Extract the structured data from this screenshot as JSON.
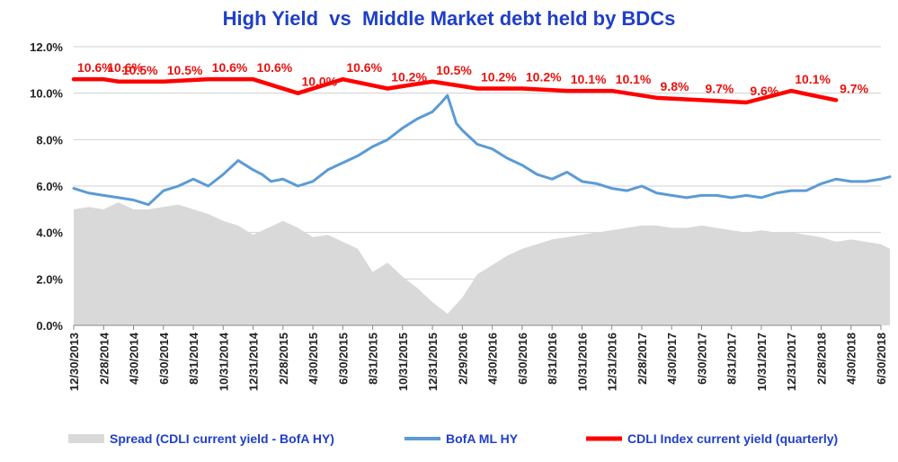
{
  "chart_data": {
    "type": "line",
    "title": "High Yield  vs  Middle Market debt held by BDCs",
    "ylim": [
      0,
      12
    ],
    "y_ticks": [
      "0.0%",
      "2.0%",
      "4.0%",
      "6.0%",
      "8.0%",
      "10.0%",
      "12.0%"
    ],
    "x_tick_labels": [
      "12/30/2013",
      "2/28/2014",
      "4/30/2014",
      "6/30/2014",
      "8/31/2014",
      "10/31/2014",
      "12/31/2014",
      "2/28/2015",
      "4/30/2015",
      "6/30/2015",
      "8/31/2015",
      "10/31/2015",
      "12/31/2015",
      "2/29/2016",
      "4/30/2016",
      "6/30/2016",
      "8/31/2016",
      "10/31/2016",
      "12/31/2016",
      "2/28/2017",
      "4/30/2017",
      "6/30/2017",
      "8/31/2017",
      "10/31/2017",
      "12/31/2017",
      "2/28/2018",
      "4/30/2018",
      "6/30/2018"
    ],
    "grid": "horizontal",
    "legend_position": "bottom",
    "series": [
      {
        "name": "Spread (CDLI current yield - BofA HY)",
        "type": "area",
        "color": "#d9d9d9",
        "x": [
          0,
          0.5,
          1,
          1.5,
          2,
          2.5,
          3,
          3.5,
          4,
          4.5,
          5,
          5.5,
          6,
          6.5,
          7,
          7.5,
          8,
          8.5,
          9,
          9.5,
          10,
          10.5,
          11,
          11.5,
          12,
          12.5,
          13,
          13.5,
          14,
          14.5,
          15,
          15.5,
          16,
          16.5,
          17,
          17.5,
          18,
          18.5,
          19,
          19.5,
          20,
          20.5,
          21,
          21.5,
          22,
          22.5,
          23,
          23.5,
          24,
          24.5,
          25,
          25.5,
          26,
          26.5,
          27,
          27.3
        ],
        "values": [
          5.0,
          5.1,
          5.0,
          5.3,
          5.0,
          5.0,
          5.1,
          5.2,
          5.0,
          4.8,
          4.5,
          4.3,
          3.9,
          4.2,
          4.5,
          4.2,
          3.8,
          3.9,
          3.6,
          3.3,
          2.3,
          2.7,
          2.1,
          1.6,
          1.0,
          0.5,
          1.2,
          2.2,
          2.6,
          3.0,
          3.3,
          3.5,
          3.7,
          3.8,
          3.9,
          4.0,
          4.1,
          4.2,
          4.3,
          4.3,
          4.2,
          4.2,
          4.3,
          4.2,
          4.1,
          4.0,
          4.1,
          4.0,
          4.0,
          3.9,
          3.8,
          3.6,
          3.7,
          3.6,
          3.5,
          3.3
        ]
      },
      {
        "name": "BofA ML HY",
        "type": "line",
        "color": "#5b9bd5",
        "x": [
          0,
          0.5,
          1,
          1.5,
          2,
          2.5,
          3,
          3.5,
          4,
          4.5,
          5,
          5.5,
          6,
          6.3,
          6.6,
          7,
          7.5,
          8,
          8.5,
          9,
          9.5,
          10,
          10.5,
          11,
          11.5,
          12,
          12.3,
          12.5,
          12.8,
          13,
          13.5,
          14,
          14.5,
          15,
          15.5,
          16,
          16.5,
          17,
          17.5,
          18,
          18.5,
          19,
          19.5,
          20,
          20.5,
          21,
          21.5,
          22,
          22.5,
          23,
          23.5,
          24,
          24.5,
          25,
          25.5,
          26,
          26.5,
          27,
          27.3
        ],
        "values": [
          5.9,
          5.7,
          5.6,
          5.5,
          5.4,
          5.2,
          5.8,
          6.0,
          6.3,
          6.0,
          6.5,
          7.1,
          6.7,
          6.5,
          6.2,
          6.3,
          6.0,
          6.2,
          6.7,
          7.0,
          7.3,
          7.7,
          8.0,
          8.5,
          8.9,
          9.2,
          9.6,
          9.9,
          8.7,
          8.4,
          7.8,
          7.6,
          7.2,
          6.9,
          6.5,
          6.3,
          6.6,
          6.2,
          6.1,
          5.9,
          5.8,
          6.0,
          5.7,
          5.6,
          5.5,
          5.6,
          5.6,
          5.5,
          5.6,
          5.5,
          5.7,
          5.8,
          5.8,
          6.1,
          6.3,
          6.2,
          6.2,
          6.3,
          6.4
        ]
      },
      {
        "name": "CDLI Index current yield (quarterly)",
        "type": "line",
        "color": "#ff0000",
        "x": [
          0,
          1,
          1.5,
          3,
          4.5,
          6,
          7.5,
          9,
          10.5,
          12,
          13.5,
          15,
          16.5,
          18,
          19.5,
          21,
          22.5,
          24,
          25.5
        ],
        "values": [
          10.6,
          10.6,
          10.5,
          10.5,
          10.6,
          10.6,
          10.0,
          10.6,
          10.2,
          10.5,
          10.2,
          10.2,
          10.1,
          10.1,
          9.8,
          9.7,
          9.6,
          10.1,
          9.7
        ],
        "data_labels": [
          "10.6%",
          "10.6%",
          "10.5%",
          "10.5%",
          "10.6%",
          "10.6%",
          "10.0%",
          "10.6%",
          "10.2%",
          "10.5%",
          "10.2%",
          "10.2%",
          "10.1%",
          "10.1%",
          "9.8%",
          "9.7%",
          "9.6%",
          "10.1%",
          "9.7%"
        ]
      }
    ]
  }
}
